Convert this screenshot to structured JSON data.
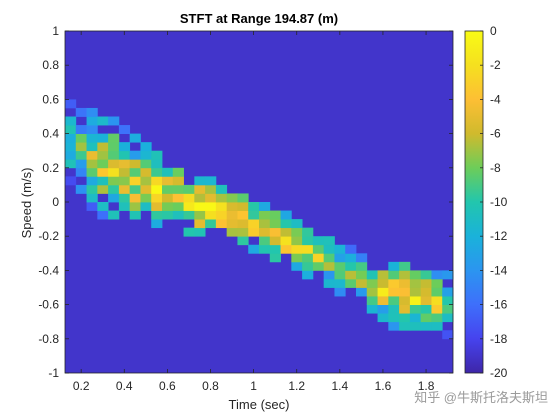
{
  "chart_data": {
    "type": "heatmap",
    "title": "STFT at Range 194.87 (m)",
    "xlabel": "Time (sec)",
    "ylabel": "Speed (m/s)",
    "xlim": [
      0.125,
      1.925
    ],
    "ylim": [
      -1,
      1
    ],
    "x_ticks": [
      "0.2",
      "0.4",
      "0.6",
      "0.8",
      "1",
      "1.2",
      "1.4",
      "1.6",
      "1.8"
    ],
    "y_ticks": [
      "1",
      "0.8",
      "0.6",
      "0.4",
      "0.2",
      "0",
      "-0.2",
      "-0.4",
      "-0.6",
      "-0.8",
      "-1"
    ],
    "colorbar": {
      "min": -20,
      "max": 0,
      "ticks": [
        "0",
        "-2",
        "-4",
        "-6",
        "-8",
        "-10",
        "-12",
        "-14",
        "-16",
        "-18",
        "-20"
      ],
      "colormap": [
        "#3e26a8",
        "#4643ee",
        "#3e6ffb",
        "#2b95f0",
        "#1ab2da",
        "#22c6ad",
        "#6dcd59",
        "#d0ba2d",
        "#fdbf34",
        "#f5e01f",
        "#f9fb15"
      ]
    },
    "background_value": -19,
    "time_bin_width": 0.05,
    "speed_bin_height": 0.05,
    "time_bins": [
      0.15,
      0.2,
      0.25,
      0.3,
      0.35,
      0.4,
      0.45,
      0.5,
      0.55,
      0.6,
      0.65,
      0.7,
      0.75,
      0.8,
      0.85,
      0.9,
      0.95,
      1.0,
      1.05,
      1.1,
      1.15,
      1.2,
      1.25,
      1.3,
      1.35,
      1.4,
      1.45,
      1.5,
      1.55,
      1.6,
      1.65,
      1.7,
      1.75,
      1.8,
      1.85,
      1.9
    ],
    "ridge": [
      {
        "t": 0.15,
        "center": 0.35,
        "spread": 0.25,
        "peak": -8
      },
      {
        "t": 0.2,
        "center": 0.3,
        "spread": 0.27,
        "peak": -7
      },
      {
        "t": 0.25,
        "center": 0.25,
        "spread": 0.3,
        "peak": -6
      },
      {
        "t": 0.3,
        "center": 0.22,
        "spread": 0.32,
        "peak": -5
      },
      {
        "t": 0.35,
        "center": 0.18,
        "spread": 0.3,
        "peak": -4
      },
      {
        "t": 0.4,
        "center": 0.15,
        "spread": 0.28,
        "peak": -5
      },
      {
        "t": 0.45,
        "center": 0.12,
        "spread": 0.28,
        "peak": -4
      },
      {
        "t": 0.5,
        "center": 0.1,
        "spread": 0.25,
        "peak": -4
      },
      {
        "t": 0.55,
        "center": 0.07,
        "spread": 0.24,
        "peak": -3
      },
      {
        "t": 0.6,
        "center": 0.04,
        "spread": 0.22,
        "peak": -4
      },
      {
        "t": 0.65,
        "center": 0.02,
        "spread": 0.2,
        "peak": -3
      },
      {
        "t": 0.7,
        "center": 0.0,
        "spread": 0.18,
        "peak": -2
      },
      {
        "t": 0.75,
        "center": -0.02,
        "spread": 0.18,
        "peak": -2
      },
      {
        "t": 0.8,
        "center": -0.04,
        "spread": 0.17,
        "peak": -1
      },
      {
        "t": 0.85,
        "center": -0.06,
        "spread": 0.16,
        "peak": -1
      },
      {
        "t": 0.9,
        "center": -0.08,
        "spread": 0.16,
        "peak": -1
      },
      {
        "t": 0.95,
        "center": -0.1,
        "spread": 0.15,
        "peak": -2
      },
      {
        "t": 1.0,
        "center": -0.13,
        "spread": 0.15,
        "peak": -3
      },
      {
        "t": 1.05,
        "center": -0.16,
        "spread": 0.15,
        "peak": -3
      },
      {
        "t": 1.1,
        "center": -0.19,
        "spread": 0.15,
        "peak": -2
      },
      {
        "t": 1.15,
        "center": -0.22,
        "spread": 0.15,
        "peak": -2
      },
      {
        "t": 1.2,
        "center": -0.25,
        "spread": 0.15,
        "peak": -3
      },
      {
        "t": 1.25,
        "center": -0.28,
        "spread": 0.15,
        "peak": -4
      },
      {
        "t": 1.3,
        "center": -0.31,
        "spread": 0.15,
        "peak": -4
      },
      {
        "t": 1.35,
        "center": -0.34,
        "spread": 0.15,
        "peak": -5
      },
      {
        "t": 1.4,
        "center": -0.38,
        "spread": 0.15,
        "peak": -6
      },
      {
        "t": 1.45,
        "center": -0.42,
        "spread": 0.15,
        "peak": -6
      },
      {
        "t": 1.5,
        "center": -0.46,
        "spread": 0.16,
        "peak": -6
      },
      {
        "t": 1.55,
        "center": -0.5,
        "spread": 0.17,
        "peak": -5
      },
      {
        "t": 1.6,
        "center": -0.52,
        "spread": 0.18,
        "peak": -4
      },
      {
        "t": 1.65,
        "center": -0.53,
        "spread": 0.2,
        "peak": -3
      },
      {
        "t": 1.7,
        "center": -0.55,
        "spread": 0.2,
        "peak": -3
      },
      {
        "t": 1.75,
        "center": -0.56,
        "spread": 0.2,
        "peak": -3
      },
      {
        "t": 1.8,
        "center": -0.57,
        "spread": 0.19,
        "peak": -4
      },
      {
        "t": 1.85,
        "center": -0.58,
        "spread": 0.18,
        "peak": -4
      },
      {
        "t": 1.9,
        "center": -0.6,
        "spread": 0.18,
        "peak": -6
      }
    ]
  },
  "watermark": "知乎 @牛斯托洛夫斯坦"
}
